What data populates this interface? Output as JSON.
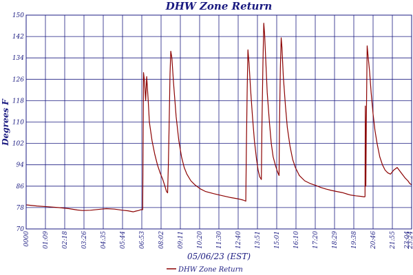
{
  "chart_data": {
    "type": "line",
    "title": "DHW Zone Return",
    "xlabel": "05/06/23 (EST)",
    "ylabel": "Degrees F",
    "ylim": [
      70,
      150
    ],
    "yticks": [
      70,
      78,
      86,
      94,
      102,
      110,
      118,
      126,
      134,
      142,
      150
    ],
    "xlim_minutes": [
      0,
      1439
    ],
    "xtick_labels": [
      "0000",
      "01:09",
      "02:18",
      "03:26",
      "04:35",
      "05:44",
      "06:53",
      "08:02",
      "09:11",
      "10:20",
      "11:30",
      "12:40",
      "13:51",
      "15:01",
      "16:10",
      "17:20",
      "18:29",
      "19:38",
      "20:46",
      "21:55",
      "23:04",
      "23:24"
    ],
    "grid": true,
    "legend": "bottom-center",
    "series": [
      {
        "name": "DHW Zone Return",
        "color": "#8b0000",
        "points": [
          [
            0,
            79.0
          ],
          [
            40,
            78.6
          ],
          [
            80,
            78.3
          ],
          [
            120,
            78.0
          ],
          [
            160,
            77.6
          ],
          [
            190,
            77.1
          ],
          [
            210,
            76.9
          ],
          [
            240,
            77.0
          ],
          [
            280,
            77.4
          ],
          [
            300,
            77.6
          ],
          [
            330,
            77.4
          ],
          [
            360,
            77.0
          ],
          [
            380,
            76.8
          ],
          [
            400,
            76.4
          ],
          [
            410,
            76.7
          ],
          [
            420,
            76.9
          ],
          [
            428,
            77.2
          ],
          [
            435,
            77.2
          ],
          [
            438,
            128.5
          ],
          [
            442,
            125.0
          ],
          [
            446,
            118.0
          ],
          [
            450,
            127.0
          ],
          [
            455,
            119.0
          ],
          [
            460,
            110.0
          ],
          [
            470,
            103.0
          ],
          [
            480,
            98.0
          ],
          [
            490,
            94.0
          ],
          [
            500,
            91.0
          ],
          [
            510,
            88.5
          ],
          [
            518,
            86.0
          ],
          [
            524,
            84.0
          ],
          [
            528,
            83.5
          ],
          [
            531,
            94.0
          ],
          [
            534,
            110.0
          ],
          [
            537,
            128.0
          ],
          [
            540,
            136.5
          ],
          [
            544,
            134.0
          ],
          [
            550,
            125.0
          ],
          [
            560,
            112.0
          ],
          [
            570,
            103.0
          ],
          [
            580,
            97.0
          ],
          [
            590,
            93.0
          ],
          [
            600,
            90.5
          ],
          [
            615,
            88.0
          ],
          [
            630,
            86.5
          ],
          [
            650,
            85.0
          ],
          [
            670,
            84.0
          ],
          [
            700,
            83.2
          ],
          [
            730,
            82.5
          ],
          [
            760,
            81.8
          ],
          [
            790,
            81.3
          ],
          [
            810,
            80.8
          ],
          [
            820,
            80.4
          ],
          [
            822,
            100.0
          ],
          [
            825,
            122.0
          ],
          [
            828,
            137.0
          ],
          [
            832,
            132.0
          ],
          [
            838,
            122.0
          ],
          [
            845,
            112.0
          ],
          [
            852,
            103.0
          ],
          [
            860,
            96.0
          ],
          [
            866,
            92.0
          ],
          [
            872,
            89.5
          ],
          [
            878,
            88.5
          ],
          [
            880,
            108.0
          ],
          [
            884,
            132.0
          ],
          [
            887,
            147.0
          ],
          [
            890,
            143.0
          ],
          [
            895,
            132.0
          ],
          [
            900,
            121.0
          ],
          [
            908,
            110.0
          ],
          [
            915,
            102.0
          ],
          [
            922,
            97.0
          ],
          [
            930,
            94.0
          ],
          [
            938,
            91.5
          ],
          [
            944,
            90.0
          ],
          [
            946,
            110.0
          ],
          [
            949,
            130.0
          ],
          [
            952,
            141.5
          ],
          [
            955,
            138.0
          ],
          [
            960,
            127.0
          ],
          [
            968,
            116.0
          ],
          [
            975,
            108.0
          ],
          [
            985,
            101.0
          ],
          [
            995,
            96.0
          ],
          [
            1005,
            93.0
          ],
          [
            1020,
            90.0
          ],
          [
            1040,
            88.0
          ],
          [
            1060,
            87.0
          ],
          [
            1080,
            86.3
          ],
          [
            1100,
            85.5
          ],
          [
            1120,
            84.9
          ],
          [
            1140,
            84.4
          ],
          [
            1160,
            84.0
          ],
          [
            1180,
            83.6
          ],
          [
            1200,
            83.0
          ],
          [
            1210,
            82.7
          ],
          [
            1230,
            82.4
          ],
          [
            1250,
            82.2
          ],
          [
            1262,
            82.0
          ],
          [
            1265,
            82.1
          ],
          [
            1266,
            116.0
          ],
          [
            1268,
            86.0
          ],
          [
            1270,
            110.0
          ],
          [
            1273,
            138.5
          ],
          [
            1277,
            134.0
          ],
          [
            1282,
            129.0
          ],
          [
            1288,
            121.0
          ],
          [
            1295,
            113.0
          ],
          [
            1302,
            107.0
          ],
          [
            1310,
            102.0
          ],
          [
            1320,
            97.0
          ],
          [
            1330,
            94.0
          ],
          [
            1340,
            92.0
          ],
          [
            1350,
            91.0
          ],
          [
            1360,
            90.5
          ],
          [
            1372,
            92.0
          ],
          [
            1385,
            93.0
          ],
          [
            1400,
            91.0
          ],
          [
            1415,
            89.0
          ],
          [
            1425,
            88.0
          ],
          [
            1432,
            87.0
          ],
          [
            1439,
            86.5
          ]
        ]
      }
    ]
  }
}
